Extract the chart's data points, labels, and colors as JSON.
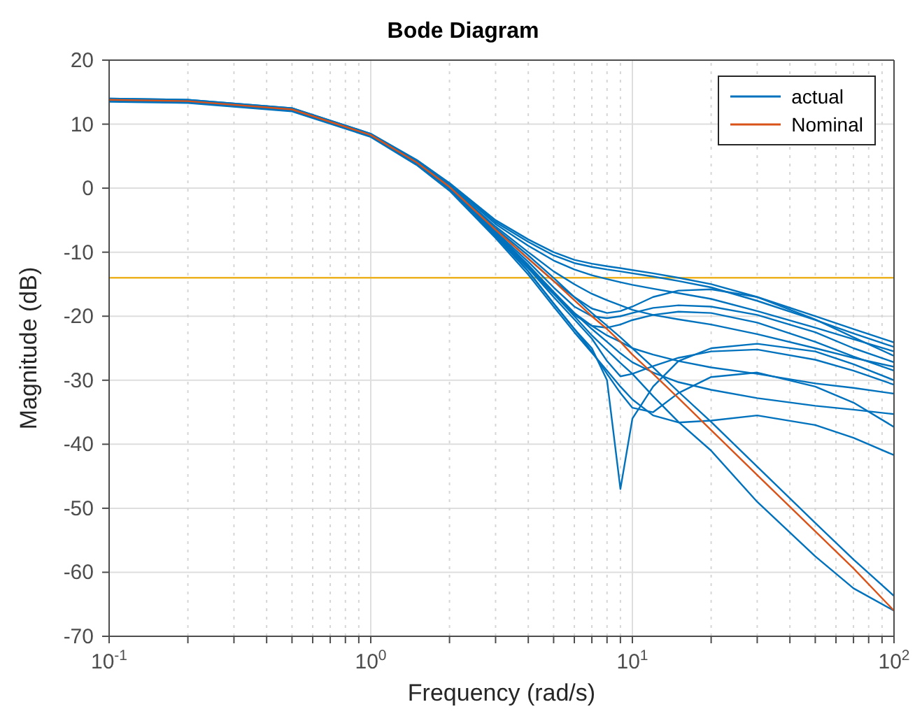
{
  "chart_data": {
    "type": "line",
    "title": "Bode Diagram",
    "xlabel": "Frequency  (rad/s)",
    "ylabel": "Magnitude (dB)",
    "x": [
      0.1,
      0.2,
      0.5,
      1,
      1.5,
      2,
      3,
      4,
      5,
      6,
      7,
      8,
      9,
      10,
      12,
      15,
      20,
      30,
      50,
      70,
      100
    ],
    "series": [
      {
        "name": "actual",
        "color": "#0072bd",
        "values": [
          14,
          13.8,
          12.5,
          8.5,
          4.4,
          0.8,
          -5,
          -8,
          -10,
          -11.2,
          -11.8,
          -12.2,
          -12.5,
          -12.8,
          -13.3,
          -14,
          -15,
          -17,
          -20,
          -22,
          -24.1
        ]
      },
      {
        "color": "#0072bd",
        "values": [
          14,
          13.8,
          12.5,
          8.5,
          4.3,
          0.7,
          -5.3,
          -8.4,
          -10.5,
          -11.7,
          -12.3,
          -12.7,
          -13,
          -13.3,
          -13.8,
          -14.5,
          -15.5,
          -17.6,
          -20.6,
          -22.7,
          -24.8
        ]
      },
      {
        "color": "#0072bd",
        "values": [
          13.9,
          13.7,
          12.4,
          8.4,
          4.2,
          0.6,
          -5.6,
          -9,
          -11.3,
          -12.7,
          -13.6,
          -14.2,
          -14.7,
          -15.1,
          -15.7,
          -16.4,
          -17.3,
          -19.2,
          -21.8,
          -23.6,
          -25.5
        ]
      },
      {
        "color": "#0072bd",
        "values": [
          13.8,
          13.6,
          12.3,
          8.3,
          4,
          0.2,
          -6.5,
          -11,
          -14.5,
          -17,
          -18.8,
          -19.5,
          -19.2,
          -18.5,
          -17,
          -16,
          -15.8,
          -17,
          -20.5,
          -23.3,
          -26.2
        ]
      },
      {
        "color": "#0072bd",
        "values": [
          13.7,
          13.5,
          12.2,
          8.2,
          3.9,
          0,
          -6.8,
          -11.5,
          -15.5,
          -18.5,
          -20,
          -20.3,
          -20,
          -19.5,
          -18.7,
          -18.3,
          -18.5,
          -19.8,
          -22.5,
          -25,
          -27.2
        ]
      },
      {
        "color": "#0072bd",
        "values": [
          13.9,
          13.7,
          12.4,
          8.4,
          4.2,
          0.4,
          -6,
          -10,
          -13,
          -15,
          -16.5,
          -17.5,
          -18.3,
          -19,
          -19.8,
          -20.5,
          -21.3,
          -22.8,
          -25,
          -26.5,
          -27.9
        ]
      },
      {
        "color": "#0072bd",
        "values": [
          13.7,
          13.5,
          12.2,
          8.2,
          3.8,
          -0.1,
          -7,
          -12,
          -16.5,
          -19.8,
          -21.5,
          -21.8,
          -21.3,
          -20.6,
          -19.8,
          -19.3,
          -19.5,
          -21,
          -24,
          -26.3,
          -28.5
        ]
      },
      {
        "color": "#0072bd",
        "values": [
          13.6,
          13.4,
          12.1,
          8.1,
          3.7,
          -0.3,
          -7.5,
          -13,
          -18,
          -22,
          -25,
          -30,
          -47,
          -36,
          -31,
          -27,
          -25,
          -24.3,
          -25.5,
          -27.5,
          -30
        ]
      },
      {
        "color": "#0072bd",
        "values": [
          13.6,
          13.4,
          12.1,
          8.1,
          3.7,
          -0.2,
          -7.3,
          -12.5,
          -17,
          -20.5,
          -23.5,
          -27,
          -29.4,
          -29,
          -27.8,
          -26.5,
          -25.5,
          -25.2,
          -26.8,
          -28.5,
          -30.7
        ]
      },
      {
        "color": "#0072bd",
        "values": [
          13.7,
          13.5,
          12.2,
          8.2,
          3.8,
          -0.1,
          -7.2,
          -12.3,
          -16.5,
          -19.5,
          -21.5,
          -23,
          -24,
          -25,
          -26,
          -27,
          -28,
          -29,
          -30.5,
          -31.2,
          -32.1
        ]
      },
      {
        "color": "#0072bd",
        "values": [
          13.7,
          13.5,
          12.2,
          8.2,
          3.8,
          0,
          -7,
          -12,
          -16.2,
          -19.5,
          -22,
          -24,
          -25.8,
          -27.2,
          -28.8,
          -30.3,
          -31.5,
          -32.8,
          -34,
          -34.6,
          -35.3
        ]
      },
      {
        "color": "#0072bd",
        "values": [
          13.6,
          13.4,
          12.1,
          8.1,
          3.7,
          -0.3,
          -7.5,
          -13,
          -18,
          -22,
          -25.5,
          -29,
          -32,
          -34.3,
          -35,
          -32,
          -29.5,
          -28.8,
          -31,
          -33.5,
          -37.3
        ]
      },
      {
        "color": "#0072bd",
        "values": [
          13.5,
          13.3,
          12,
          8,
          3.6,
          -0.4,
          -7.8,
          -13.5,
          -18.5,
          -22.5,
          -25.7,
          -28.5,
          -31,
          -33,
          -35.5,
          -36.6,
          -36.3,
          -35.5,
          -37,
          -39,
          -41.7
        ]
      },
      {
        "color": "#0072bd",
        "values": [
          13.9,
          13.7,
          12.4,
          8.4,
          4.1,
          0.5,
          -6.3,
          -10.5,
          -14,
          -17,
          -19.5,
          -21.5,
          -23.3,
          -25,
          -28,
          -31.8,
          -36.5,
          -43.5,
          -52.3,
          -58,
          -63.7
        ]
      },
      {
        "color": "#0072bd",
        "values": [
          13.6,
          13.4,
          12.1,
          8.1,
          3.7,
          -0.3,
          -7.5,
          -12.5,
          -16.5,
          -20,
          -23,
          -25.3,
          -27.3,
          -29,
          -32.5,
          -36.5,
          -41,
          -49,
          -57.5,
          -62.5,
          -66
        ]
      },
      {
        "name": "Nominal",
        "color": "#d95319",
        "values": [
          13.8,
          13.6,
          12.3,
          8.3,
          4,
          0.2,
          -6.5,
          -11,
          -14.5,
          -17.5,
          -20,
          -22,
          -24,
          -26,
          -29,
          -32.8,
          -37.8,
          -44.8,
          -53.6,
          -59.4,
          -66
        ]
      }
    ],
    "log": "x",
    "xlim": [
      0.1,
      100
    ],
    "xticks": [
      {
        "value": 0.1,
        "label": "10$^{-1}$"
      },
      {
        "value": 0.2,
        "label": null
      },
      {
        "value": 0.3,
        "label": null
      },
      {
        "value": 0.4,
        "label": null
      },
      {
        "value": 0.5,
        "label": null
      },
      {
        "value": 0.6,
        "label": null
      },
      {
        "value": 0.7,
        "label": null
      },
      {
        "value": 0.8,
        "label": null
      },
      {
        "value": 0.9,
        "label": null
      },
      {
        "value": 1,
        "label": "10$^{0}$"
      },
      {
        "value": 2,
        "label": null
      },
      {
        "value": 3,
        "label": null
      },
      {
        "value": 4,
        "label": null
      },
      {
        "value": 5,
        "label": null
      },
      {
        "value": 6,
        "label": null
      },
      {
        "value": 7,
        "label": null
      },
      {
        "value": 8,
        "label": null
      },
      {
        "value": 9,
        "label": null
      },
      {
        "value": 10,
        "label": "10$^{1}$"
      },
      {
        "value": 20,
        "label": null
      },
      {
        "value": 30,
        "label": null
      },
      {
        "value": 40,
        "label": null
      },
      {
        "value": 50,
        "label": null
      },
      {
        "value": 60,
        "label": null
      },
      {
        "value": 70,
        "label": null
      },
      {
        "value": 80,
        "label": null
      },
      {
        "value": 90,
        "label": null
      },
      {
        "value": 100,
        "label": "10$^{2}$"
      }
    ],
    "ylim": [
      -70,
      20
    ],
    "yticks": [
      -70,
      -60,
      -50,
      -40,
      -30,
      -20,
      -10,
      0,
      10,
      20
    ],
    "ref_lines": [
      {
        "axis": "y",
        "value": -14,
        "color": "#edb120"
      }
    ],
    "grid": true,
    "legend": "top right",
    "marker": "none",
    "line_style": "solid"
  }
}
